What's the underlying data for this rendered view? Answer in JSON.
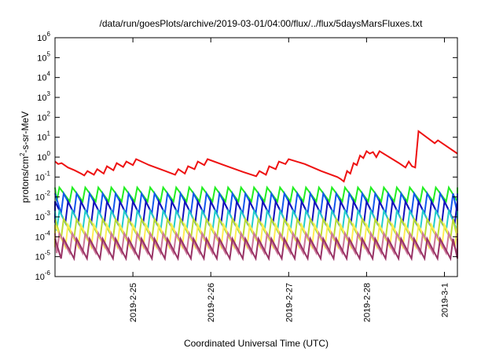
{
  "chart_data": {
    "type": "line",
    "title": "/data/run/goesPlots/archive/2019-03-01/04:00/flux/../flux/5daysMarsFluxes.txt",
    "xlabel": "Coordinated Universal Time (UTC)",
    "ylabel": "protons/cm²-s-sr-MeV",
    "ylabel_parts": [
      "protons/cm",
      "2",
      "-s-sr-MeV"
    ],
    "y_scale": "log",
    "y_exponent_range": [
      -6,
      6
    ],
    "ylim": [
      1e-06,
      1000000.0
    ],
    "y_tick_base": "10",
    "y_tick_exponents": [
      "-6",
      "-5",
      "-4",
      "-3",
      "-2",
      "-1",
      "0",
      "1",
      "2",
      "3",
      "4",
      "5",
      "6"
    ],
    "xlim": [
      "2019-02-24T00:00",
      "2019-03-01T04:00"
    ],
    "x_ticks": [
      {
        "label": "2019-2-25",
        "at": "2019-02-25T00:00"
      },
      {
        "label": "2019-2-26",
        "at": "2019-02-26T00:00"
      },
      {
        "label": "2019-2-27",
        "at": "2019-02-27T00:00"
      },
      {
        "label": "2019-2-28",
        "at": "2019-02-28T00:00"
      },
      {
        "label": "2019-3-1",
        "at": "2019-03-01T00:00"
      }
    ],
    "grid": false,
    "legend": "none",
    "series": [
      {
        "color": "#ee1111",
        "style": "single",
        "points": [
          [
            "2019-02-24T00:00",
            0.6
          ],
          [
            "2019-02-24T01:00",
            0.45
          ],
          [
            "2019-02-24T02:00",
            0.5
          ],
          [
            "2019-02-24T04:00",
            0.3
          ],
          [
            "2019-02-24T06:00",
            0.22
          ],
          [
            "2019-02-24T08:00",
            0.15
          ],
          [
            "2019-02-24T09:00",
            0.12
          ],
          [
            "2019-02-24T10:00",
            0.2
          ],
          [
            "2019-02-24T12:00",
            0.13
          ],
          [
            "2019-02-24T13:00",
            0.25
          ],
          [
            "2019-02-24T15:00",
            0.15
          ],
          [
            "2019-02-24T16:00",
            0.35
          ],
          [
            "2019-02-24T18:00",
            0.22
          ],
          [
            "2019-02-24T19:00",
            0.5
          ],
          [
            "2019-02-24T21:00",
            0.32
          ],
          [
            "2019-02-24T22:00",
            0.6
          ],
          [
            "2019-02-25T00:00",
            0.4
          ],
          [
            "2019-02-25T01:00",
            0.8
          ],
          [
            "2019-02-25T05:00",
            0.4
          ],
          [
            "2019-02-25T10:00",
            0.2
          ],
          [
            "2019-02-25T13:00",
            0.13
          ],
          [
            "2019-02-25T14:00",
            0.25
          ],
          [
            "2019-02-25T16:00",
            0.15
          ],
          [
            "2019-02-25T17:00",
            0.35
          ],
          [
            "2019-02-25T19:00",
            0.25
          ],
          [
            "2019-02-25T20:00",
            0.6
          ],
          [
            "2019-02-25T22:00",
            0.4
          ],
          [
            "2019-02-25T23:00",
            0.8
          ],
          [
            "2019-02-26T04:00",
            0.4
          ],
          [
            "2019-02-26T10:00",
            0.18
          ],
          [
            "2019-02-26T14:00",
            0.11
          ],
          [
            "2019-02-26T15:00",
            0.2
          ],
          [
            "2019-02-26T17:00",
            0.13
          ],
          [
            "2019-02-26T18:00",
            0.35
          ],
          [
            "2019-02-26T20:00",
            0.25
          ],
          [
            "2019-02-26T21:00",
            0.6
          ],
          [
            "2019-02-26T23:00",
            0.45
          ],
          [
            "2019-02-27T00:00",
            0.8
          ],
          [
            "2019-02-27T05:00",
            0.45
          ],
          [
            "2019-02-27T10:00",
            0.2
          ],
          [
            "2019-02-27T15:00",
            0.1
          ],
          [
            "2019-02-27T16:00",
            0.08
          ],
          [
            "2019-02-27T17:00",
            0.06
          ],
          [
            "2019-02-27T18:00",
            0.2
          ],
          [
            "2019-02-27T19:00",
            0.15
          ],
          [
            "2019-02-27T20:00",
            0.5
          ],
          [
            "2019-02-27T21:00",
            0.4
          ],
          [
            "2019-02-27T22:00",
            1.2
          ],
          [
            "2019-02-27T23:00",
            0.9
          ],
          [
            "2019-02-28T00:00",
            2.0
          ],
          [
            "2019-02-28T01:00",
            1.5
          ],
          [
            "2019-02-28T02:00",
            1.8
          ],
          [
            "2019-02-28T03:00",
            1.0
          ],
          [
            "2019-02-28T04:00",
            2.0
          ],
          [
            "2019-02-28T10:00",
            0.5
          ],
          [
            "2019-02-28T12:00",
            0.3
          ],
          [
            "2019-02-28T13:00",
            0.6
          ],
          [
            "2019-02-28T14:00",
            0.35
          ],
          [
            "2019-02-28T15:00",
            0.3
          ],
          [
            "2019-02-28T16:00",
            20
          ],
          [
            "2019-02-28T21:00",
            5
          ],
          [
            "2019-02-28T22:00",
            7
          ],
          [
            "2019-03-01T04:00",
            1.5
          ]
        ]
      },
      {
        "color": "#22ee22",
        "style": "sawtooth",
        "low": 0.006,
        "high": 0.03
      },
      {
        "color": "#1155ee",
        "style": "sawtooth",
        "low": 0.0015,
        "high": 0.015
      },
      {
        "color": "#1111bb",
        "style": "sawtooth",
        "low": 0.0005,
        "high": 0.006
      },
      {
        "color": "#22cccc",
        "style": "sawtooth",
        "low": 0.0002,
        "high": 0.002
      },
      {
        "color": "#bbdd33",
        "style": "sawtooth",
        "low": 8e-05,
        "high": 0.0008
      },
      {
        "color": "#ffee55",
        "style": "sawtooth",
        "low": 3e-05,
        "high": 0.0004
      },
      {
        "color": "#cc7799",
        "style": "sawtooth",
        "low": 1.5e-05,
        "high": 0.00015
      },
      {
        "color": "#993366",
        "style": "sawtooth",
        "low": 8e-06,
        "high": 8e-05
      }
    ],
    "sawtooth_period_hours": 4
  }
}
